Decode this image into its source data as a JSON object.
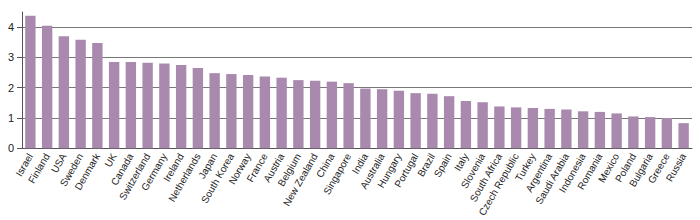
{
  "chart_data": {
    "type": "bar",
    "categories": [
      "Israel",
      "Finland",
      "USA",
      "Sweden",
      "Denmark",
      "UK",
      "Canada",
      "Switzerland",
      "Germany",
      "Ireland",
      "Netherlands",
      "Japan",
      "South Korea",
      "Norway",
      "France",
      "Austria",
      "Belgium",
      "New Zealand",
      "China",
      "Singapore",
      "India",
      "Australia",
      "Hungary",
      "Portugal",
      "Brazil",
      "Spain",
      "Italy",
      "Slovenia",
      "South Africa",
      "Czech Republic",
      "Turkey",
      "Argentina",
      "Saudi Arabia",
      "Indonesia",
      "Romania",
      "Mexico",
      "Poland",
      "Bulgaria",
      "Greece",
      "Russia"
    ],
    "values": [
      4.38,
      4.05,
      3.7,
      3.58,
      3.48,
      2.85,
      2.85,
      2.82,
      2.8,
      2.75,
      2.65,
      2.48,
      2.45,
      2.42,
      2.37,
      2.33,
      2.25,
      2.23,
      2.2,
      2.15,
      1.97,
      1.95,
      1.9,
      1.82,
      1.8,
      1.72,
      1.56,
      1.52,
      1.38,
      1.35,
      1.33,
      1.3,
      1.28,
      1.22,
      1.2,
      1.15,
      1.05,
      1.03,
      1.0,
      0.83
    ],
    "color": "#a98aae",
    "ylim": [
      0,
      4.5
    ],
    "yticks": [
      0,
      1,
      2,
      3,
      4
    ],
    "grid": true
  }
}
